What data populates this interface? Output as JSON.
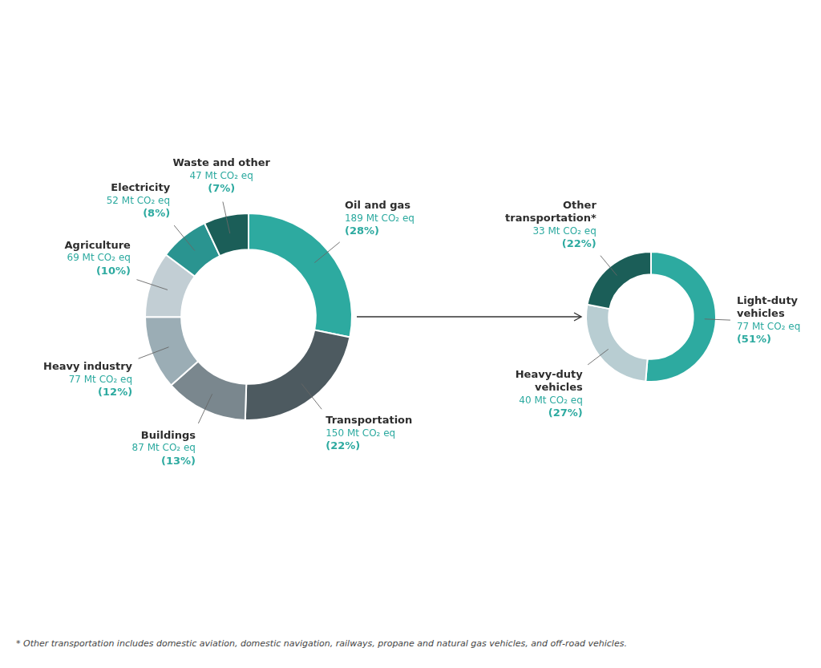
{
  "chart_data": [
    {
      "type": "doughnut",
      "categories": [
        "Oil and gas",
        "Transportation",
        "Buildings",
        "Heavy industry",
        "Agriculture",
        "Electricity",
        "Waste and other"
      ],
      "values": [
        189,
        150,
        87,
        77,
        69,
        52,
        47
      ],
      "value_labels": [
        "189 Mt CO₂ eq",
        "150 Mt CO₂ eq",
        "87 Mt CO₂ eq",
        "77 Mt CO₂ eq",
        "69 Mt CO₂ eq",
        "52 Mt CO₂ eq",
        "47 Mt CO₂ eq"
      ],
      "shares": [
        28,
        22,
        13,
        12,
        10,
        8,
        7
      ],
      "share_labels": [
        "(28%)",
        "(22%)",
        "(13%)",
        "(12%)",
        "(10%)",
        "(8%)",
        "(7%)"
      ],
      "colors": [
        "#2daaa0",
        "#4d5a60",
        "#7a878e",
        "#9badb5",
        "#c2ced4",
        "#2a9490",
        "#1b5e58"
      ],
      "data_labels": true
    },
    {
      "type": "doughnut",
      "categories": [
        "Light-duty\nvehicles",
        "Heavy-duty\nvehicles",
        "Other\ntransportation*"
      ],
      "values": [
        77,
        40,
        33
      ],
      "value_labels": [
        "77 Mt CO₂ eq",
        "40 Mt CO₂ eq",
        "33 Mt CO₂ eq"
      ],
      "shares": [
        51,
        27,
        22
      ],
      "share_labels": [
        "(51%)",
        "(27%)",
        "(22%)"
      ],
      "colors": [
        "#2daaa0",
        "#b8cdd2",
        "#1b5e58"
      ],
      "data_labels": true,
      "annotations": [
        "* Other transportation includes domestic aviation, domestic navigation, railways, propane and natural gas vehicles, and off-road vehicles."
      ]
    }
  ]
}
